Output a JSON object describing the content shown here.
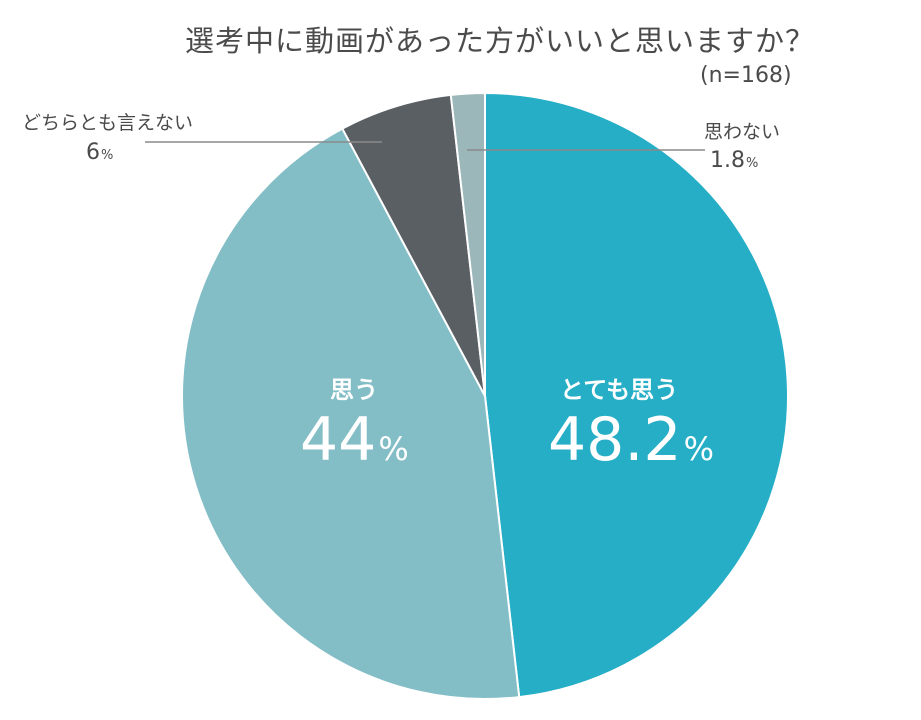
{
  "chart_data": {
    "type": "pie",
    "title": "選考中に動画があった方がいいと思いますか？",
    "subtitle": "(n=168)",
    "start": "12 o'clock",
    "direction": "clockwise",
    "slices": [
      {
        "label": "とても思う",
        "value": 48.2,
        "display": "48.2",
        "unit": "%",
        "color": "#25aec6"
      },
      {
        "label": "思う",
        "value": 44,
        "display": "44",
        "unit": "%",
        "color": "#83bec7"
      },
      {
        "label": "どちらとも言えない",
        "value": 6,
        "display": "6",
        "unit": "%",
        "color": "#5a5f64"
      },
      {
        "label": "思わない",
        "value": 1.8,
        "display": "1.8",
        "unit": "%",
        "color": "#9cb7ba"
      }
    ]
  }
}
